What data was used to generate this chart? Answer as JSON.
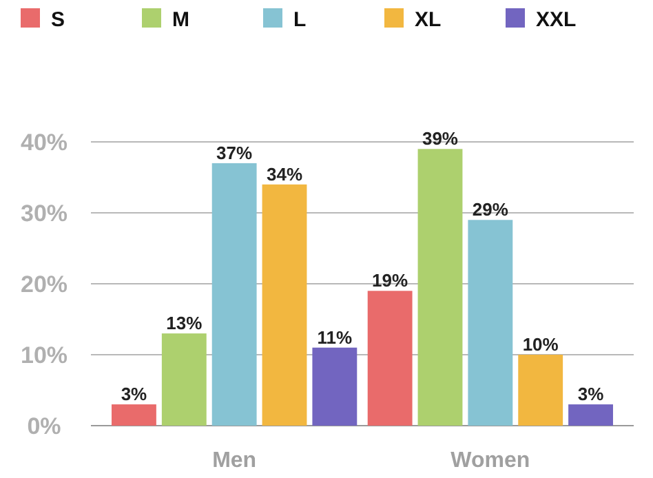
{
  "chart_data": {
    "type": "bar",
    "categories": [
      "Men",
      "Women"
    ],
    "series": [
      {
        "name": "S",
        "color": "#e96b6b",
        "values": [
          3,
          19
        ]
      },
      {
        "name": "M",
        "color": "#add06e",
        "values": [
          13,
          39
        ]
      },
      {
        "name": "L",
        "color": "#86c3d3",
        "values": [
          37,
          29
        ]
      },
      {
        "name": "XL",
        "color": "#f2b740",
        "values": [
          34,
          10
        ]
      },
      {
        "name": "XXL",
        "color": "#7265c0",
        "values": [
          11,
          3
        ]
      }
    ],
    "value_labels": [
      [
        "3%",
        "19%"
      ],
      [
        "13%",
        "39%"
      ],
      [
        "37%",
        "29%"
      ],
      [
        "34%",
        "10%"
      ],
      [
        "11%",
        "3%"
      ]
    ],
    "ylim": [
      0,
      40
    ],
    "yticks": [
      {
        "value": 0,
        "label": "0%"
      },
      {
        "value": 10,
        "label": "10%"
      },
      {
        "value": 20,
        "label": "20%"
      },
      {
        "value": 30,
        "label": "30%"
      },
      {
        "value": 40,
        "label": "40%"
      }
    ],
    "grid": "y",
    "legend": "top"
  }
}
